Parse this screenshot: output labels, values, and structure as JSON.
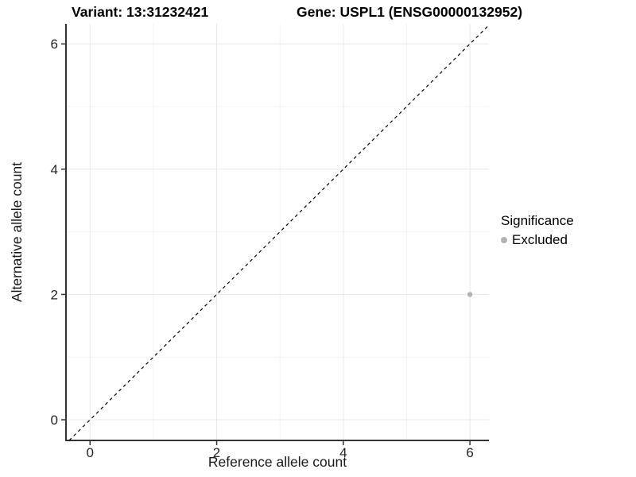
{
  "header": {
    "variant_title": "Variant: 13:31232421",
    "gene_title": "Gene: USPL1 (ENSG00000132952)"
  },
  "chart_data": {
    "type": "scatter",
    "xlabel": "Reference allele count",
    "ylabel": "Alternative allele count",
    "xlim": [
      -0.38,
      6.3
    ],
    "ylim": [
      -0.33,
      6.32
    ],
    "x_ticks": [
      0,
      2,
      4,
      6
    ],
    "y_ticks": [
      0,
      2,
      4,
      6
    ],
    "x_minor_ticks": [
      1,
      3,
      5
    ],
    "y_minor_ticks": [
      1,
      3,
      5
    ],
    "grid": true,
    "points": [
      {
        "x": 6,
        "y": 2,
        "series": "Excluded"
      }
    ],
    "reference_line": {
      "type": "identity",
      "slope": 1,
      "intercept": 0,
      "style": "dashed"
    },
    "legend": {
      "title": "Significance",
      "position": "right",
      "entries": [
        {
          "label": "Excluded",
          "color": "#b3b3b3"
        }
      ]
    }
  },
  "colors": {
    "background": "#ffffff",
    "grid_major": "#e8e8e8",
    "grid_minor": "#f3f3f3",
    "axis_line": "#333333",
    "tick_text": "#262626",
    "title_text": "#000000",
    "reference_line": "#000000",
    "point": "#b3b3b3"
  }
}
